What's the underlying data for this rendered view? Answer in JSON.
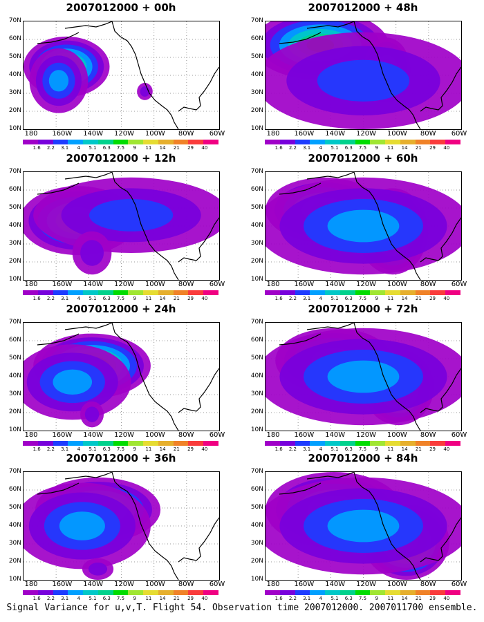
{
  "panels": [
    {
      "title": "2007012000 + 00h"
    },
    {
      "title": "2007012000 + 48h"
    },
    {
      "title": "2007012000 + 12h"
    },
    {
      "title": "2007012000 + 60h"
    },
    {
      "title": "2007012000 + 24h"
    },
    {
      "title": "2007012000 + 72h"
    },
    {
      "title": "2007012000 + 36h"
    },
    {
      "title": "2007012000 + 84h"
    }
  ],
  "lat_labels": [
    "70N",
    "60N",
    "50N",
    "40N",
    "30N",
    "20N",
    "10N"
  ],
  "lon_labels": [
    "180",
    "160W",
    "140W",
    "120W",
    "100W",
    "80W",
    "60W"
  ],
  "colorbar": {
    "labels": [
      "1.6",
      "2.2",
      "3.1",
      "4",
      "5.1",
      "6.3",
      "7.5",
      "9",
      "11",
      "14",
      "21",
      "29",
      "40"
    ],
    "colors": [
      "#a000c8",
      "#7800dc",
      "#1e3cff",
      "#00a0ff",
      "#00c8c8",
      "#00d28c",
      "#00dc00",
      "#a0e632",
      "#e6dc32",
      "#e6af2d",
      "#f08228",
      "#fa3c3c",
      "#f00082"
    ]
  },
  "caption": "Signal Variance for u,v,T. Flight 54. Observation time 2007012000. 2007011700 ensemble."
}
